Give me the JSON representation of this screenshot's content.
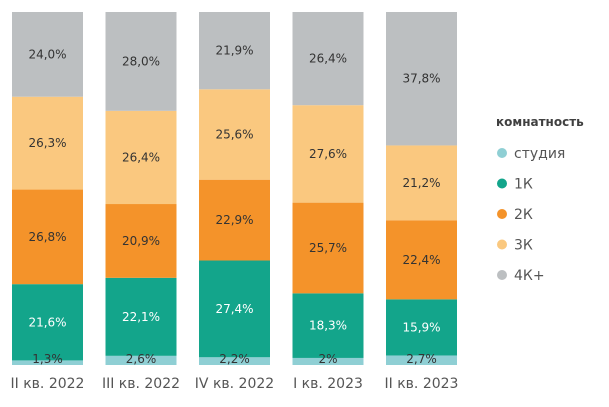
{
  "chart_data": {
    "type": "bar",
    "stacked": true,
    "normalized": true,
    "categories": [
      "II кв. 2022",
      "III кв. 2022",
      "IV кв. 2022",
      "I кв. 2023",
      "II кв. 2023"
    ],
    "series": [
      {
        "name": "студия",
        "values": [
          1.3,
          2.6,
          2.2,
          2.0,
          2.7
        ],
        "labels": [
          "1,3%",
          "2,6%",
          "2,2%",
          "2%",
          "2,7%"
        ],
        "color": "#8fcfd4"
      },
      {
        "name": "1К",
        "values": [
          21.6,
          22.1,
          27.4,
          18.3,
          15.9
        ],
        "labels": [
          "21,6%",
          "22,1%",
          "27,4%",
          "18,3%",
          "15,9%"
        ],
        "color": "#13a58b"
      },
      {
        "name": "2К",
        "values": [
          26.8,
          20.9,
          22.9,
          25.7,
          22.4
        ],
        "labels": [
          "26,8%",
          "20,9%",
          "22,9%",
          "25,7%",
          "22,4%"
        ],
        "color": "#f4932a"
      },
      {
        "name": "3К",
        "values": [
          26.3,
          26.4,
          25.6,
          27.6,
          21.2
        ],
        "labels": [
          "26,3%",
          "26,4%",
          "25,6%",
          "27,6%",
          "21,2%"
        ],
        "color": "#fac87f"
      },
      {
        "name": "4К+",
        "values": [
          24.0,
          28.0,
          21.9,
          26.4,
          37.8
        ],
        "labels": [
          "24,0%",
          "28,0%",
          "21,9%",
          "26,4%",
          "37,8%"
        ],
        "color": "#bcbfc1"
      }
    ],
    "legend": {
      "title": "комнатность",
      "position": "right"
    },
    "ylim": [
      0,
      100
    ],
    "grid": false
  }
}
